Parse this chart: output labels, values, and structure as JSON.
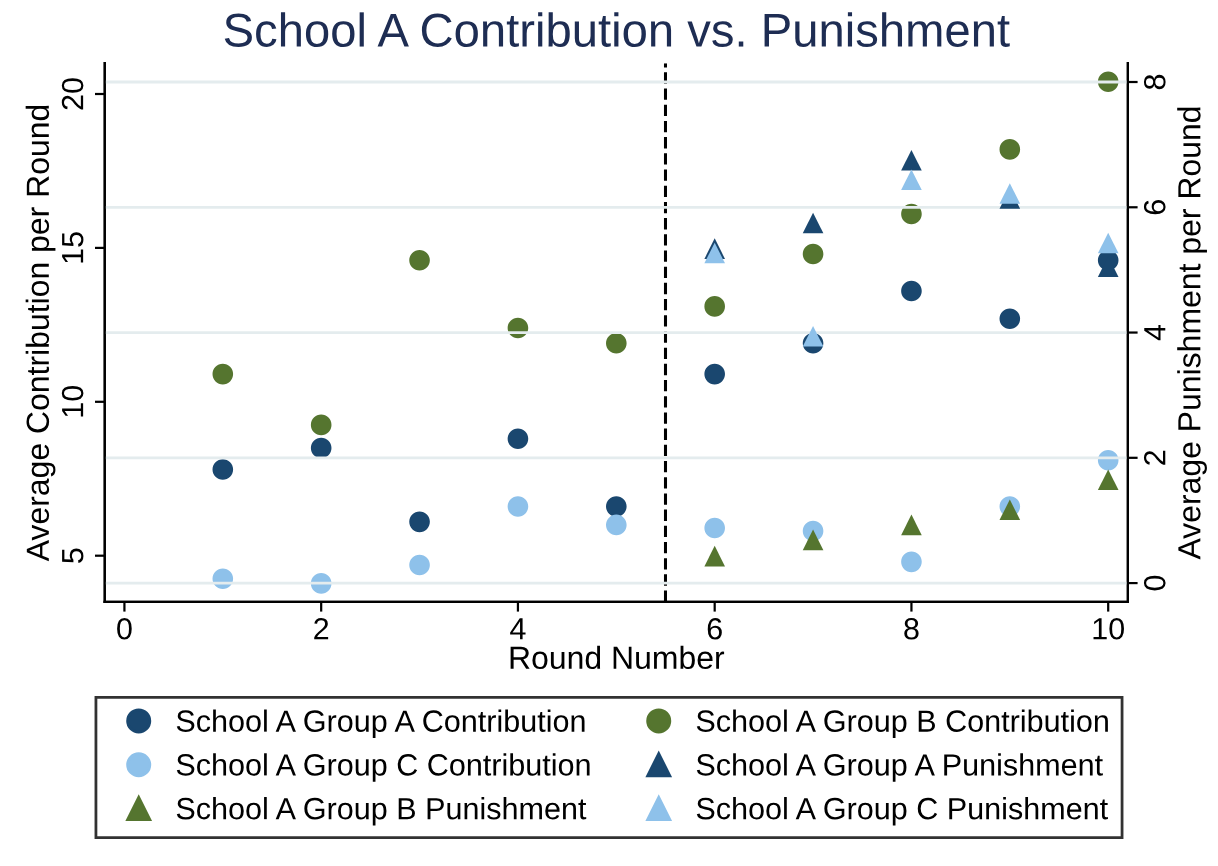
{
  "chart_data": {
    "type": "scatter",
    "title": "School A Contribution vs. Punishment",
    "xlabel": "Round Number",
    "ylabel": "Average Contribution per Round",
    "y2label": "Average Punishment per Round",
    "x": [
      1,
      2,
      3,
      4,
      5,
      6,
      7,
      8,
      9,
      10
    ],
    "series": [
      {
        "name": "School A Group A Contribution",
        "color": "#1a476f",
        "marker": "circle",
        "values": [
          7.8,
          8.5,
          6.1,
          8.8,
          6.6,
          10.9,
          11.9,
          13.6,
          12.7,
          14.6
        ]
      },
      {
        "name": "School A Group B Contribution",
        "color": "#55752f",
        "marker": "circle",
        "values": [
          10.9,
          9.25,
          14.6,
          12.4,
          11.9,
          13.1,
          14.8,
          16.1,
          18.2,
          20.4
        ]
      },
      {
        "name": "School A Group C Contribution",
        "color": "#8ec1ea",
        "marker": "circle",
        "values": [
          4.25,
          4.1,
          4.7,
          6.6,
          6.0,
          5.9,
          5.8,
          4.8,
          6.6,
          8.1
        ]
      },
      {
        "name": "School A Group A Punishment",
        "color": "#1a476f",
        "marker": "triangle",
        "axis": "y2",
        "values": [
          null,
          null,
          null,
          null,
          null,
          5.34,
          5.75,
          6.75,
          6.14,
          5.05
        ]
      },
      {
        "name": "School A Group B Punishment",
        "color": "#55752f",
        "marker": "triangle",
        "axis": "y2",
        "values": [
          null,
          null,
          null,
          null,
          null,
          0.43,
          0.69,
          0.93,
          1.17,
          1.65
        ]
      },
      {
        "name": "School A Group C Punishment",
        "color": "#8ec1ea",
        "marker": "triangle",
        "axis": "y2",
        "values": [
          null,
          null,
          null,
          null,
          null,
          5.27,
          3.94,
          6.44,
          6.22,
          5.43
        ]
      }
    ],
    "xlim": [
      -0.2,
      10.2
    ],
    "xticks": [
      0,
      2,
      4,
      6,
      8,
      10
    ],
    "ylim": [
      3.5,
      21
    ],
    "yticks": [
      5,
      10,
      15,
      20
    ],
    "y2lim": [
      -0.3,
      8.3
    ],
    "y2ticks": [
      0,
      2,
      4,
      6,
      8
    ],
    "grid": "y2",
    "legend": "bottom",
    "ref_lines": [
      {
        "axis": "x",
        "value": 5.5,
        "color": "#000000",
        "line_style": "dashed"
      }
    ]
  }
}
